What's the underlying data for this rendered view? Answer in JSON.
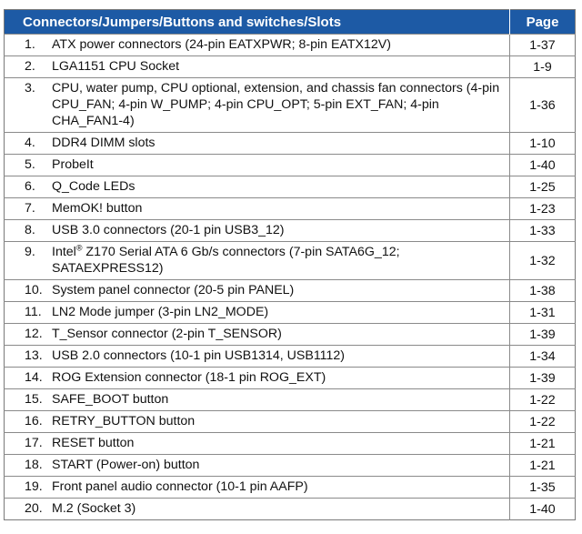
{
  "table": {
    "header": {
      "item": "Connectors/Jumpers/Buttons and switches/Slots",
      "page": "Page"
    },
    "rows": [
      {
        "num": "1.",
        "text": "ATX power connectors (24-pin EATXPWR; 8-pin EATX12V)",
        "page": "1-37"
      },
      {
        "num": "2.",
        "text": "LGA1151 CPU Socket",
        "page": "1-9"
      },
      {
        "num": "3.",
        "text": "CPU, water pump, CPU optional, extension, and chassis fan connectors (4-pin CPU_FAN; 4-pin W_PUMP; 4-pin CPU_OPT; 5-pin EXT_FAN; 4-pin CHA_FAN1-4)",
        "page": "1-36"
      },
      {
        "num": "4.",
        "text": "DDR4 DIMM slots",
        "page": "1-10"
      },
      {
        "num": "5.",
        "text": "ProbeIt",
        "page": "1-40"
      },
      {
        "num": "6.",
        "text": "Q_Code LEDs",
        "page": "1-25"
      },
      {
        "num": "7.",
        "text": "MemOK! button",
        "page": "1-23"
      },
      {
        "num": "8.",
        "text": "USB 3.0 connectors (20-1 pin USB3_12)",
        "page": "1-33"
      },
      {
        "num": "9.",
        "text_pre": "Intel",
        "text_sup": "®",
        "text": " Z170 Serial ATA 6 Gb/s connectors (7-pin SATA6G_12; SATAEXPRESS12)",
        "page": "1-32"
      },
      {
        "num": "10.",
        "text": "System panel connector (20-5 pin PANEL)",
        "page": "1-38"
      },
      {
        "num": "11.",
        "text": "LN2 Mode jumper (3-pin LN2_MODE)",
        "page": "1-31"
      },
      {
        "num": "12.",
        "text": "T_Sensor connector (2-pin T_SENSOR)",
        "page": "1-39"
      },
      {
        "num": "13.",
        "text": "USB 2.0 connectors (10-1 pin USB1314, USB1112)",
        "page": "1-34"
      },
      {
        "num": "14.",
        "text": "ROG Extension connector (18-1 pin ROG_EXT)",
        "page": "1-39"
      },
      {
        "num": "15.",
        "text": "SAFE_BOOT button",
        "page": "1-22"
      },
      {
        "num": "16.",
        "text": "RETRY_BUTTON button",
        "page": "1-22"
      },
      {
        "num": "17.",
        "text": "RESET button",
        "page": "1-21"
      },
      {
        "num": "18.",
        "text": "START (Power-on) button",
        "page": "1-21"
      },
      {
        "num": "19.",
        "text": "Front panel audio connector (10-1 pin AAFP)",
        "page": "1-35"
      },
      {
        "num": "20.",
        "text": "M.2 (Socket 3)",
        "page": "1-40"
      }
    ]
  }
}
